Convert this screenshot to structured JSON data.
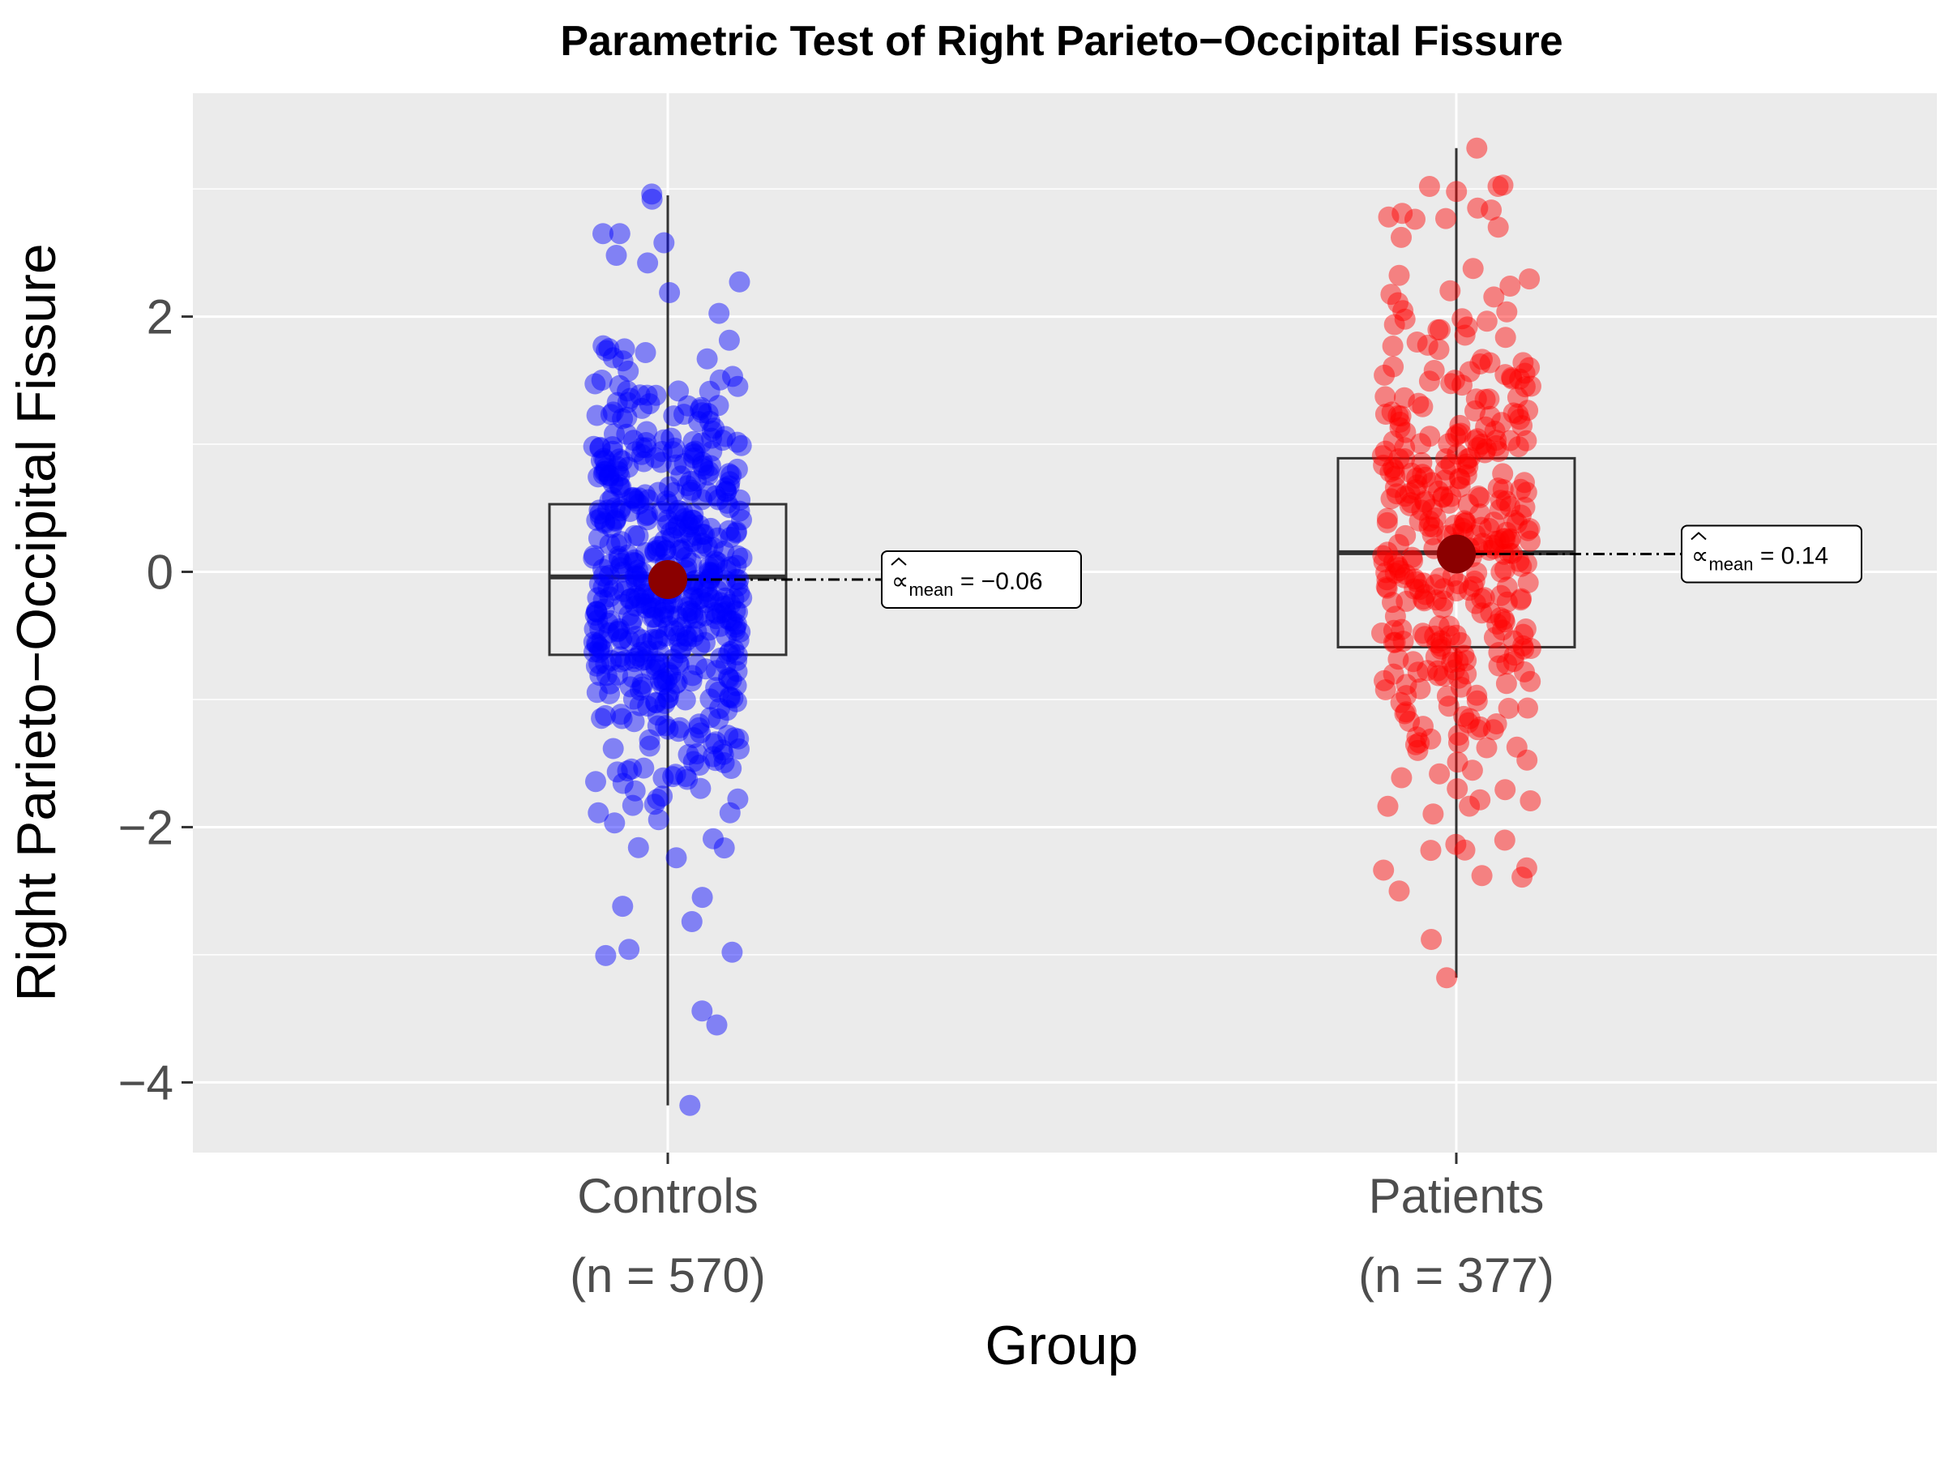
{
  "chart_data": {
    "type": "scatter",
    "subtype": "box-jitter",
    "title": "Parametric Test of Right Parieto−Occipital Fissure",
    "xlabel": "Group",
    "ylabel": "Right Parieto−Occipital Fissure",
    "ylim": [
      -4.55,
      3.75
    ],
    "y_ticks": [
      2,
      0,
      -2,
      -4
    ],
    "y_tick_labels": [
      "2",
      "0",
      "−2",
      "−4"
    ],
    "grid": true,
    "panel_background": "#ebebeb",
    "groups": [
      {
        "name": "Controls",
        "count_label": "(n = 570)",
        "color": "#0000ff",
        "n": 570,
        "box": {
          "whisker_low": -4.18,
          "q1": -0.65,
          "median": -0.04,
          "q3": 0.53,
          "whisker_high": 2.95
        },
        "mean": -0.06,
        "mean_label_prefix": "mean",
        "mean_label_value": "= −0.06",
        "outliers": [
          2.92,
          2.42,
          2.48,
          2.96,
          -3.44,
          -3.55,
          -4.18,
          -2.98,
          -2.62,
          -2.74,
          -2.55,
          -2.24
        ]
      },
      {
        "name": "Patients",
        "count_label": "(n = 377)",
        "color": "#ff0000",
        "n": 377,
        "box": {
          "whisker_low": -3.18,
          "q1": -0.59,
          "median": 0.15,
          "q3": 0.89,
          "whisker_high": 3.32
        },
        "mean": 0.14,
        "mean_label_prefix": "mean",
        "mean_label_value": "= 0.14",
        "outliers": [
          3.32,
          3.03,
          2.98,
          2.85,
          2.78,
          2.7,
          2.62,
          -3.18,
          -2.5,
          -2.38,
          -2.32,
          -2.18
        ]
      }
    ],
    "mean_point_color": "#8b0000"
  }
}
